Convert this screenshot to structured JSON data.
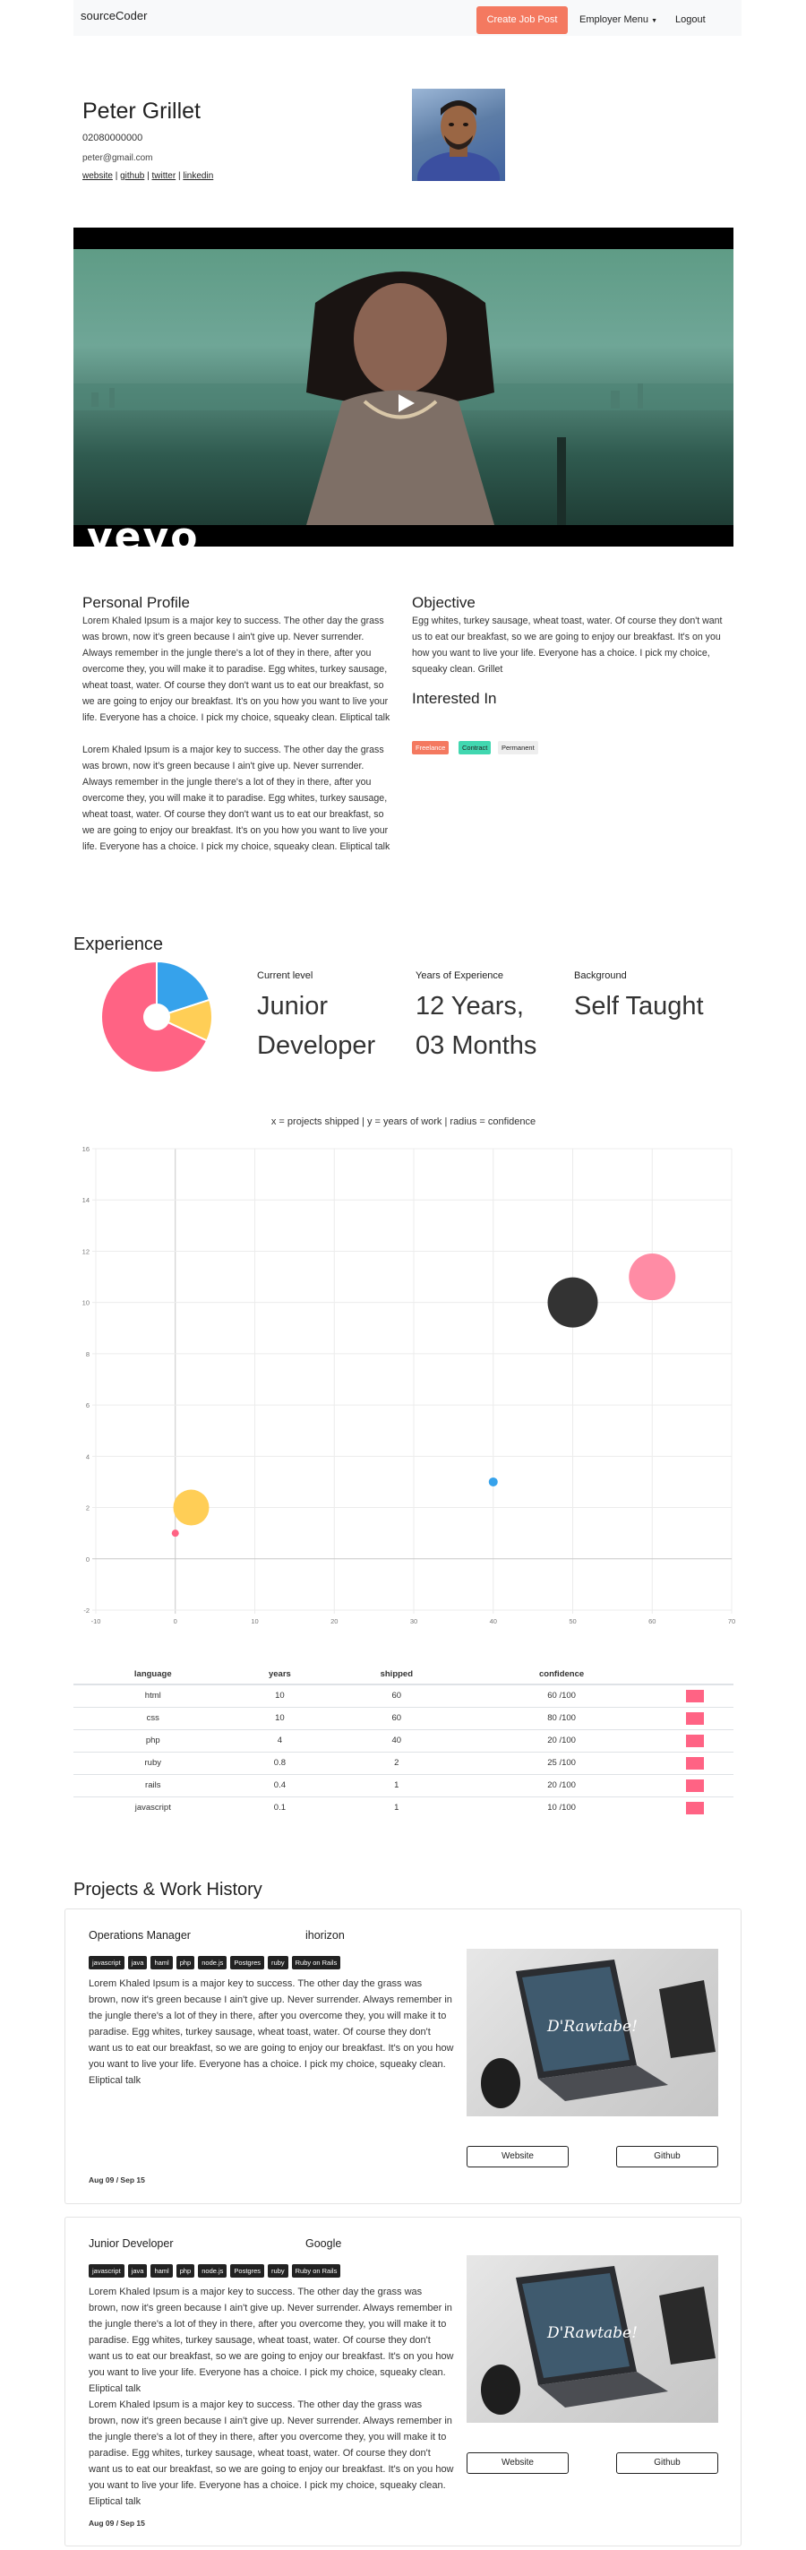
{
  "nav": {
    "brand": "sourceCoder",
    "create_job_post": "Create Job Post",
    "employer_menu": "Employer Menu",
    "logout": "Logout"
  },
  "profile": {
    "name": "Peter Grillet",
    "phone": "02080000000",
    "email": "peter@gmail.com",
    "links": [
      "website",
      "github",
      "twitter",
      "linkedin"
    ],
    "link_separator": "|"
  },
  "video": {
    "watermark": "vevo"
  },
  "personal_profile": {
    "heading": "Personal Profile",
    "paragraphs": [
      "Lorem Khaled Ipsum is a major key to success. The other day the grass was brown, now it's green because I ain't give up. Never surrender. Always remember in the jungle there's a lot of they in there, after you overcome they, you will make it to paradise. Egg whites, turkey sausage, wheat toast, water. Of course they don't want us to eat our breakfast, so we are going to enjoy our breakfast. It's on you how you want to live your life. Everyone has a choice. I pick my choice, squeaky clean. Eliptical talk",
      "Lorem Khaled Ipsum is a major key to success. The other day the grass was brown, now it's green because I ain't give up. Never surrender. Always remember in the jungle there's a lot of they in there, after you overcome they, you will make it to paradise. Egg whites, turkey sausage, wheat toast, water. Of course they don't want us to eat our breakfast, so we are going to enjoy our breakfast. It's on you how you want to live your life. Everyone has a choice. I pick my choice, squeaky clean. Eliptical talk"
    ]
  },
  "objective": {
    "heading": "Objective",
    "text": "Egg whites, turkey sausage, wheat toast, water. Of course they don't want us to eat our breakfast, so we are going to enjoy our breakfast. It's on you how you want to live your life. Everyone has a choice. I pick my choice, squeaky clean. Grillet"
  },
  "interested_in": {
    "heading": "Interested In",
    "tags": [
      {
        "label": "Freelance",
        "bg": "#f47960",
        "fg": "#ffffff"
      },
      {
        "label": "Contract",
        "bg": "#41d7b0",
        "fg": "#222222"
      },
      {
        "label": "Permanent",
        "bg": "#eeeeee",
        "fg": "#222222"
      }
    ]
  },
  "experience": {
    "heading": "Experience",
    "current_level_label": "Current level",
    "current_level_value": [
      "Junior",
      "Developer"
    ],
    "years_label": "Years of Experience",
    "years_value": [
      "12 Years,",
      "03 Months"
    ],
    "background_label": "Background",
    "background_value": "Self Taught"
  },
  "colors": {
    "accent": "#f47960",
    "pink": "#ff6384",
    "blue": "#36a2eb",
    "yellow": "#ffce56",
    "dark": "#333333"
  },
  "chart_data": [
    {
      "type": "pie",
      "style": "doughnut",
      "categories": [
        "",
        "",
        ""
      ],
      "values": [
        68,
        20,
        12
      ],
      "colors": [
        "#ff6384",
        "#36a2eb",
        "#ffce56"
      ]
    },
    {
      "type": "scatter",
      "style": "bubble",
      "title": "x = projects shipped | y = years of work | radius = confidence",
      "xlim": [
        -10,
        70
      ],
      "ylim": [
        -2,
        16
      ],
      "xticks": [
        -10,
        0,
        10,
        20,
        30,
        40,
        50,
        60,
        70
      ],
      "yticks": [
        -2,
        0,
        2,
        4,
        6,
        8,
        10,
        12,
        14,
        16
      ],
      "grid": true,
      "points": [
        {
          "x": 0,
          "y": 1,
          "r": 4,
          "color": "#ff6384"
        },
        {
          "x": 2,
          "y": 2,
          "r": 20,
          "color": "#ffce56"
        },
        {
          "x": 40,
          "y": 3,
          "r": 5,
          "color": "#36a2eb"
        },
        {
          "x": 50,
          "y": 10,
          "r": 28,
          "color": "#333333"
        },
        {
          "x": 60,
          "y": 11,
          "r": 26,
          "color": "#ff8ca5"
        }
      ]
    },
    {
      "type": "table",
      "columns": [
        "language",
        "years",
        "shipped",
        "confidence",
        ""
      ],
      "rows": [
        [
          "html",
          "10",
          "60",
          "60 /100"
        ],
        [
          "css",
          "10",
          "60",
          "80 /100"
        ],
        [
          "php",
          "4",
          "40",
          "20 /100"
        ],
        [
          "ruby",
          "0.8",
          "2",
          "25 /100"
        ],
        [
          "rails",
          "0.4",
          "1",
          "20 /100"
        ],
        [
          "javascript",
          "0.1",
          "1",
          "10 /100"
        ]
      ]
    }
  ],
  "projects": {
    "heading": "Projects & Work History",
    "items": [
      {
        "title": "Operations Manager",
        "company": "ihorizon",
        "chips": [
          "javascript",
          "java",
          "haml",
          "php",
          "node.js",
          "Postgres",
          "ruby",
          "Ruby on Rails"
        ],
        "paragraphs": [
          "Lorem Khaled Ipsum is a major key to success. The other day the grass was brown, now it's green because I ain't give up. Never surrender. Always remember in the jungle there's a lot of they in there, after you overcome they, you will make it to paradise. Egg whites, turkey sausage, wheat toast, water. Of course they don't want us to eat our breakfast, so we are going to enjoy our breakfast. It's on you how you want to live your life. Everyone has a choice. I pick my choice, squeaky clean. Eliptical talk"
        ],
        "website_label": "Website",
        "github_label": "Github",
        "date": "Aug 09 / Sep 15",
        "image_logo": "D'Rawtabe!"
      },
      {
        "title": "Junior Developer",
        "company": "Google",
        "chips": [
          "javascript",
          "java",
          "haml",
          "php",
          "node.js",
          "Postgres",
          "ruby",
          "Ruby on Rails"
        ],
        "paragraphs": [
          "Lorem Khaled Ipsum is a major key to success. The other day the grass was brown, now it's green because I ain't give up. Never surrender. Always remember in the jungle there's a lot of they in there, after you overcome they, you will make it to paradise. Egg whites, turkey sausage, wheat toast, water. Of course they don't want us to eat our breakfast, so we are going to enjoy our breakfast. It's on you how you want to live your life. Everyone has a choice. I pick my choice, squeaky clean. Eliptical talk",
          "Lorem Khaled Ipsum is a major key to success. The other day the grass was brown, now it's green because I ain't give up. Never surrender. Always remember in the jungle there's a lot of they in there, after you overcome they, you will make it to paradise. Egg whites, turkey sausage, wheat toast, water. Of course they don't want us to eat our breakfast, so we are going to enjoy our breakfast. It's on you how you want to live your life. Everyone has a choice. I pick my choice, squeaky clean. Eliptical talk"
        ],
        "website_label": "Website",
        "github_label": "Github",
        "date": "Aug 09 / Sep 15",
        "image_logo": "D'Rawtabe!"
      }
    ]
  }
}
